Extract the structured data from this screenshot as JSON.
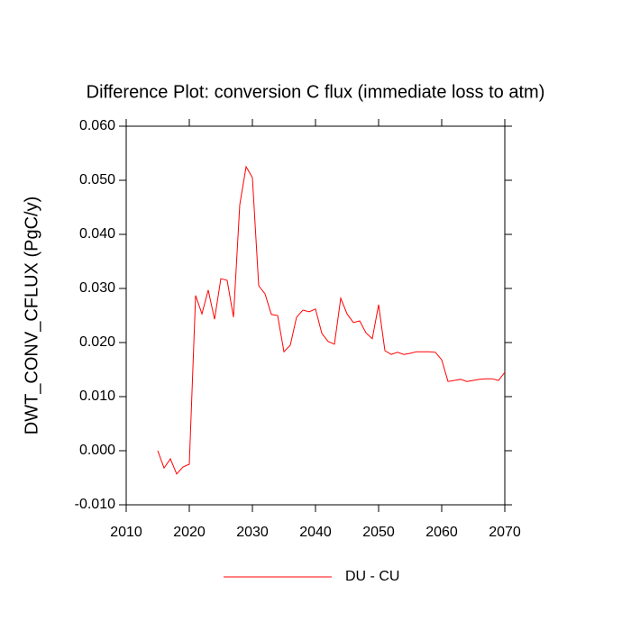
{
  "chart_data": {
    "type": "line",
    "title": "Difference Plot: conversion C flux (immediate loss to atm)",
    "y_label": "DWT_CONV_CFLUX  (PgC/y)",
    "x": [
      2015,
      2016,
      2017,
      2018,
      2019,
      2020,
      2021,
      2022,
      2023,
      2024,
      2025,
      2026,
      2027,
      2028,
      2029,
      2030,
      2031,
      2032,
      2033,
      2034,
      2035,
      2036,
      2037,
      2038,
      2039,
      2040,
      2041,
      2042,
      2043,
      2044,
      2045,
      2046,
      2047,
      2048,
      2049,
      2050,
      2051,
      2052,
      2053,
      2054,
      2055,
      2056,
      2057,
      2058,
      2059,
      2060,
      2061,
      2062,
      2063,
      2064,
      2065,
      2066,
      2067,
      2068,
      2069,
      2070
    ],
    "series": [
      {
        "name": "DU - CU",
        "color": "#ff0000",
        "values": [
          0.0,
          -0.0032,
          -0.0015,
          -0.0043,
          -0.003,
          -0.0025,
          0.0287,
          0.0253,
          0.0297,
          0.0243,
          0.0318,
          0.0315,
          0.0247,
          0.0455,
          0.0525,
          0.0505,
          0.0305,
          0.029,
          0.0252,
          0.025,
          0.0183,
          0.0195,
          0.0247,
          0.026,
          0.0257,
          0.0262,
          0.0217,
          0.0202,
          0.0197,
          0.0282,
          0.0253,
          0.0237,
          0.024,
          0.0218,
          0.0207,
          0.027,
          0.0185,
          0.0178,
          0.0182,
          0.0178,
          0.018,
          0.0183,
          0.0183,
          0.0183,
          0.0182,
          0.0168,
          0.0128,
          0.013,
          0.0132,
          0.0128,
          0.013,
          0.0132,
          0.0133,
          0.0133,
          0.013,
          0.0145
        ]
      }
    ],
    "xlim": [
      2010,
      2070
    ],
    "xticks": [
      2010,
      2020,
      2030,
      2040,
      2050,
      2060,
      2070
    ],
    "ylim": [
      -0.01,
      0.06
    ],
    "yticks": [
      {
        "value": -0.01,
        "label": "-0.010"
      },
      {
        "value": 0.0,
        "label": "0.000"
      },
      {
        "value": 0.01,
        "label": "0.010"
      },
      {
        "value": 0.02,
        "label": "0.020"
      },
      {
        "value": 0.03,
        "label": "0.030"
      },
      {
        "value": 0.04,
        "label": "0.040"
      },
      {
        "value": 0.05,
        "label": "0.050"
      },
      {
        "value": 0.06,
        "label": "0.060"
      }
    ],
    "grid": false,
    "legend": "bottom"
  }
}
